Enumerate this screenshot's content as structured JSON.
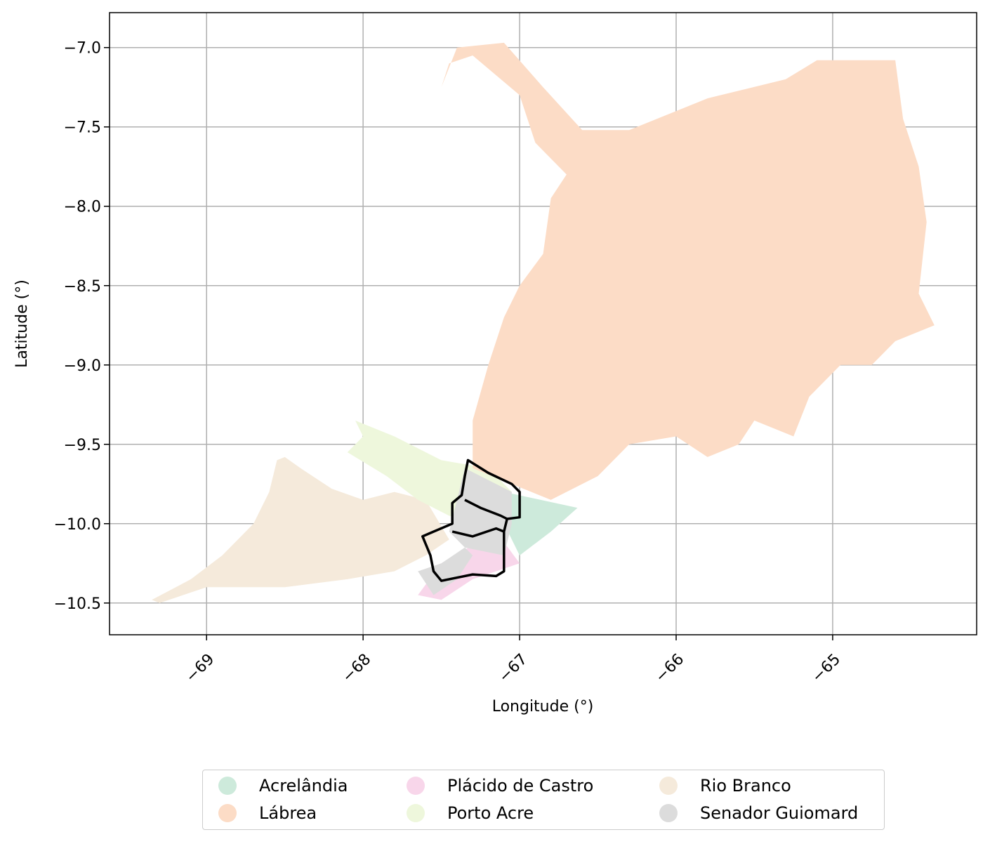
{
  "chart_data": {
    "type": "map",
    "xlabel": "Longitude (°)",
    "ylabel": "Latitude (°)",
    "xlim": [
      -69.62,
      -64.08
    ],
    "ylim": [
      -10.7,
      -6.78
    ],
    "xticks": [
      -69,
      -68,
      -67,
      -66,
      -65
    ],
    "xtick_labels": [
      "−69",
      "−68",
      "−67",
      "−66",
      "−65"
    ],
    "yticks": [
      -7.0,
      -7.5,
      -8.0,
      -8.5,
      -9.0,
      -9.5,
      -10.0,
      -10.5
    ],
    "ytick_labels": [
      "−7.0",
      "−7.5",
      "−8.0",
      "−8.5",
      "−9.0",
      "−9.5",
      "−10.0",
      "−10.5"
    ],
    "grid": true,
    "legend_position": "bottom-center",
    "regions": [
      {
        "name": "Acrelândia",
        "color": "#cdeadb",
        "outline": [
          [
            -67.1,
            -9.8
          ],
          [
            -66.63,
            -9.9
          ],
          [
            -66.8,
            -10.05
          ],
          [
            -67.0,
            -10.2
          ],
          [
            -67.1,
            -10.0
          ]
        ]
      },
      {
        "name": "Lábrea",
        "color": "#fcdcc6",
        "outline": [
          [
            -67.5,
            -7.25
          ],
          [
            -67.4,
            -7.0
          ],
          [
            -67.1,
            -6.97
          ],
          [
            -66.85,
            -7.25
          ],
          [
            -66.6,
            -7.52
          ],
          [
            -66.3,
            -7.52
          ],
          [
            -65.8,
            -7.32
          ],
          [
            -65.3,
            -7.2
          ],
          [
            -65.1,
            -7.08
          ],
          [
            -64.6,
            -7.08
          ],
          [
            -64.55,
            -7.45
          ],
          [
            -64.45,
            -7.75
          ],
          [
            -64.4,
            -8.1
          ],
          [
            -64.45,
            -8.55
          ],
          [
            -64.35,
            -8.75
          ],
          [
            -64.6,
            -8.85
          ],
          [
            -64.75,
            -9.0
          ],
          [
            -64.95,
            -9.0
          ],
          [
            -65.15,
            -9.2
          ],
          [
            -65.25,
            -9.45
          ],
          [
            -65.5,
            -9.35
          ],
          [
            -65.6,
            -9.5
          ],
          [
            -65.8,
            -9.58
          ],
          [
            -66.0,
            -9.45
          ],
          [
            -66.3,
            -9.5
          ],
          [
            -66.5,
            -9.7
          ],
          [
            -66.8,
            -9.85
          ],
          [
            -67.3,
            -9.65
          ],
          [
            -67.3,
            -9.35
          ],
          [
            -67.2,
            -9.0
          ],
          [
            -67.1,
            -8.7
          ],
          [
            -67.0,
            -8.5
          ],
          [
            -66.85,
            -8.3
          ],
          [
            -66.8,
            -7.95
          ],
          [
            -66.7,
            -7.8
          ],
          [
            -66.9,
            -7.6
          ],
          [
            -67.0,
            -7.3
          ],
          [
            -67.3,
            -7.05
          ],
          [
            -67.45,
            -7.1
          ]
        ]
      },
      {
        "name": "Plácido de Castro",
        "color": "#f8d6ea",
        "outline": [
          [
            -67.5,
            -10.25
          ],
          [
            -67.15,
            -10.05
          ],
          [
            -67.0,
            -10.25
          ],
          [
            -67.3,
            -10.35
          ],
          [
            -67.5,
            -10.48
          ],
          [
            -67.65,
            -10.45
          ]
        ]
      },
      {
        "name": "Porto Acre",
        "color": "#eef7dc",
        "outline": [
          [
            -68.05,
            -9.35
          ],
          [
            -67.8,
            -9.45
          ],
          [
            -67.5,
            -9.6
          ],
          [
            -67.2,
            -9.65
          ],
          [
            -67.05,
            -9.8
          ],
          [
            -67.2,
            -10.0
          ],
          [
            -67.45,
            -9.95
          ],
          [
            -67.65,
            -9.85
          ],
          [
            -67.85,
            -9.7
          ],
          [
            -68.1,
            -9.55
          ],
          [
            -68.0,
            -9.45
          ]
        ]
      },
      {
        "name": "Rio Branco",
        "color": "#f5eadb",
        "outline": [
          [
            -69.35,
            -10.48
          ],
          [
            -69.1,
            -10.35
          ],
          [
            -68.9,
            -10.2
          ],
          [
            -68.7,
            -10.0
          ],
          [
            -68.6,
            -9.8
          ],
          [
            -68.55,
            -9.6
          ],
          [
            -68.5,
            -9.58
          ],
          [
            -68.4,
            -9.65
          ],
          [
            -68.2,
            -9.78
          ],
          [
            -68.0,
            -9.85
          ],
          [
            -67.8,
            -9.8
          ],
          [
            -67.6,
            -9.85
          ],
          [
            -67.45,
            -10.1
          ],
          [
            -67.6,
            -10.2
          ],
          [
            -67.8,
            -10.3
          ],
          [
            -68.1,
            -10.35
          ],
          [
            -68.5,
            -10.4
          ],
          [
            -69.0,
            -10.4
          ],
          [
            -69.3,
            -10.5
          ]
        ]
      },
      {
        "name": "Senador Guiomard",
        "color": "#dcdcdc",
        "outline": [
          [
            -67.35,
            -9.65
          ],
          [
            -67.05,
            -9.8
          ],
          [
            -67.05,
            -10.0
          ],
          [
            -67.1,
            -10.2
          ],
          [
            -67.35,
            -10.15
          ],
          [
            -67.5,
            -10.25
          ],
          [
            -67.65,
            -10.3
          ],
          [
            -67.55,
            -10.45
          ],
          [
            -67.4,
            -10.35
          ],
          [
            -67.3,
            -10.2
          ],
          [
            -67.45,
            -10.05
          ],
          [
            -67.4,
            -9.85
          ]
        ]
      }
    ],
    "highlight_outline": [
      [
        -67.33,
        -9.6
      ],
      [
        -67.2,
        -9.68
      ],
      [
        -67.05,
        -9.75
      ],
      [
        -67.0,
        -9.8
      ],
      [
        -67.0,
        -9.96
      ],
      [
        -67.08,
        -9.97
      ],
      [
        -67.1,
        -10.05
      ],
      [
        -67.1,
        -10.3
      ],
      [
        -67.15,
        -10.33
      ],
      [
        -67.3,
        -10.32
      ],
      [
        -67.5,
        -10.36
      ],
      [
        -67.55,
        -10.3
      ],
      [
        -67.57,
        -10.2
      ],
      [
        -67.62,
        -10.08
      ],
      [
        -67.55,
        -10.05
      ],
      [
        -67.43,
        -10.0
      ],
      [
        -67.43,
        -9.87
      ],
      [
        -67.37,
        -9.82
      ],
      [
        -67.35,
        -9.7
      ]
    ],
    "legend": [
      {
        "label": "Acrelândia",
        "color": "#cdeadb"
      },
      {
        "label": "Lábrea",
        "color": "#fcdcc6"
      },
      {
        "label": "Plácido de Castro",
        "color": "#f8d6ea"
      },
      {
        "label": "Porto Acre",
        "color": "#eef7dc"
      },
      {
        "label": "Rio Branco",
        "color": "#f5eadb"
      },
      {
        "label": "Senador Guiomard",
        "color": "#dcdcdc"
      }
    ]
  }
}
